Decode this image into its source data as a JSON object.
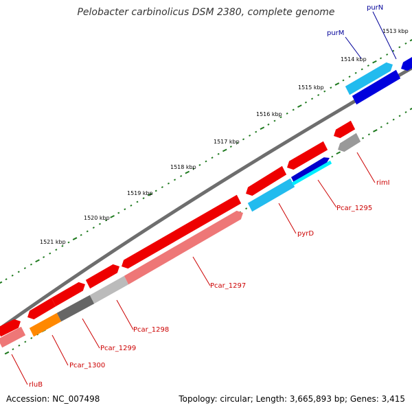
{
  "title": "Pelobacter carbinolicus DSM 2380, complete genome",
  "footer": {
    "accession": "Accession: NC_007498",
    "topology": "Topology: circular; Length: 3,665,893 bp; Genes: 3,415"
  },
  "colors": {
    "backbone": "#6e6e6e",
    "tick": "#1f7a1f",
    "label_red": "#cc0000",
    "label_blue": "#000099"
  },
  "kbp_labels": [
    "1513 kbp",
    "1514 kbp",
    "1515 kbp",
    "1516 kbp",
    "1517 kbp",
    "1518 kbp",
    "1519 kbp",
    "1520 kbp",
    "1521 kbp"
  ],
  "genes": [
    {
      "name": "purN",
      "color": "#0000dd"
    },
    {
      "name": "purM",
      "color": "#22bbee"
    },
    {
      "name": "rimI",
      "color": "#999999"
    },
    {
      "name": "Pcar_1295",
      "color": "#0000cc"
    },
    {
      "name": "pyrD",
      "color": "#22bbee"
    },
    {
      "name": "Pcar_1297",
      "color": "#ee7777"
    },
    {
      "name": "Pcar_1298",
      "color": "#bbbbbb"
    },
    {
      "name": "Pcar_1299",
      "color": "#666666"
    },
    {
      "name": "Pcar_1300",
      "color": "#ff8800"
    },
    {
      "name": "rluB",
      "color": "#ee7777"
    }
  ],
  "forward_features": [
    "red",
    "red",
    "red",
    "red",
    "red",
    "red",
    "red",
    "red"
  ]
}
